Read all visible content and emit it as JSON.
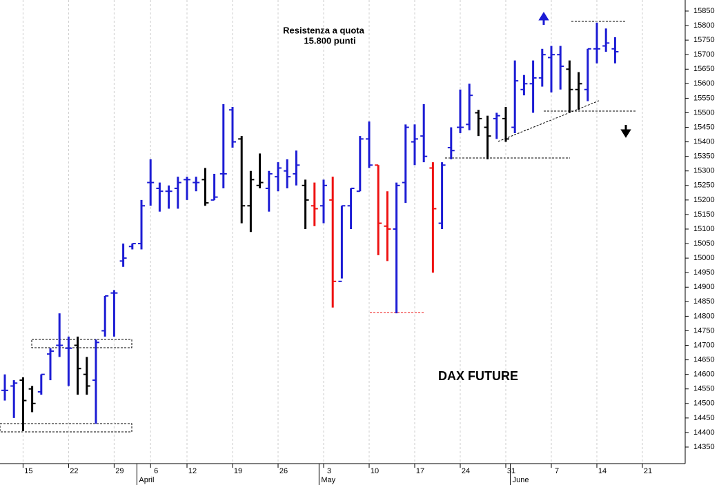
{
  "chart_data": {
    "type": "ohlc",
    "title": "DAX FUTURE",
    "annotations": [
      "Resistenza a quota",
      "15.800 punti"
    ],
    "categories": [
      null,
      null,
      "15",
      null,
      null,
      null,
      null,
      "22",
      null,
      null,
      null,
      null,
      "29",
      null,
      null,
      null,
      "6",
      null,
      null,
      null,
      "12",
      null,
      null,
      null,
      null,
      "19",
      null,
      null,
      null,
      null,
      "26",
      null,
      null,
      null,
      null,
      "3",
      null,
      null,
      null,
      null,
      "10",
      null,
      null,
      null,
      null,
      "17",
      null,
      null,
      null,
      null,
      "24",
      null,
      null,
      null,
      null,
      "31",
      null,
      null,
      null,
      null,
      "7",
      null,
      null,
      null,
      null,
      "14",
      null,
      null,
      null,
      null,
      "21",
      null,
      null,
      null
    ],
    "month_labels": [
      null,
      null,
      null,
      null,
      null,
      null,
      null,
      null,
      null,
      null,
      null,
      null,
      null,
      null,
      null,
      "April",
      null,
      null,
      null,
      null,
      null,
      null,
      null,
      null,
      null,
      null,
      null,
      null,
      null,
      null,
      null,
      null,
      null,
      null,
      null,
      "May",
      null,
      null,
      null,
      null,
      null,
      null,
      null,
      null,
      null,
      null,
      null,
      null,
      null,
      null,
      null,
      null,
      null,
      null,
      null,
      null,
      "June",
      null,
      null,
      null,
      null,
      null,
      null,
      null,
      null,
      null,
      null,
      null,
      null,
      null,
      null,
      null,
      null,
      null
    ],
    "series": [
      {
        "open": [
          14545,
          14560,
          14580,
          14550,
          14540,
          14670,
          14700,
          14690,
          14700,
          14600,
          14580,
          14750,
          14880,
          14990,
          15040,
          15050,
          15260,
          15240,
          15230,
          15240,
          15270,
          15260,
          15270,
          15200,
          15290,
          15510,
          15410,
          15180,
          15250,
          15240,
          15280,
          15300,
          15290,
          15250,
          15180,
          15180,
          15200,
          14920,
          15180,
          15230,
          15410,
          15320,
          15110,
          15100,
          15260,
          15400,
          15420,
          15310,
          15120,
          15380,
          15450,
          15460,
          15500,
          15450,
          15480,
          15480,
          15450,
          15580,
          15600,
          15620,
          15690,
          15700,
          15650,
          15580,
          15580,
          15720,
          15730,
          15720,
          null,
          null,
          null,
          null,
          null,
          null
        ],
        "high": [
          14600,
          14580,
          14590,
          14560,
          14600,
          14690,
          14810,
          14730,
          14730,
          14660,
          14720,
          14870,
          14890,
          15050,
          15050,
          15200,
          15340,
          15260,
          15250,
          15280,
          15280,
          15280,
          15310,
          15290,
          15530,
          15520,
          15420,
          15300,
          15360,
          15300,
          15330,
          15340,
          15370,
          15270,
          15260,
          15270,
          15280,
          15180,
          15240,
          15420,
          15470,
          15320,
          15230,
          15260,
          15460,
          15460,
          15530,
          15330,
          15330,
          15450,
          15580,
          15600,
          15510,
          15490,
          15500,
          15520,
          15680,
          15630,
          15680,
          15720,
          15730,
          15730,
          15680,
          15640,
          15720,
          15810,
          15790,
          15760,
          null,
          null,
          null,
          null,
          null,
          null
        ],
        "low": [
          14510,
          14450,
          14405,
          14470,
          14530,
          14580,
          14660,
          14560,
          14530,
          14530,
          14430,
          14730,
          14730,
          14970,
          15030,
          15030,
          15180,
          15160,
          15170,
          15170,
          15200,
          15230,
          15180,
          15200,
          15240,
          15380,
          15120,
          15090,
          15240,
          15160,
          15230,
          15240,
          15250,
          15100,
          15110,
          15120,
          14830,
          14930,
          15100,
          15230,
          15310,
          15010,
          14990,
          14810,
          15190,
          15320,
          15330,
          14950,
          15100,
          15340,
          15430,
          15440,
          15420,
          15340,
          15410,
          15400,
          15430,
          15560,
          15500,
          15590,
          15570,
          15580,
          15500,
          15510,
          15540,
          15670,
          15710,
          15670,
          null,
          null,
          null,
          null,
          null,
          null
        ],
        "close": [
          14545,
          14570,
          14510,
          14500,
          14600,
          14680,
          14700,
          14690,
          14620,
          14560,
          14710,
          14870,
          14880,
          15000,
          15050,
          15180,
          15260,
          15230,
          15230,
          15260,
          15270,
          15260,
          15190,
          15210,
          15290,
          15400,
          15180,
          15270,
          15260,
          15290,
          15310,
          15280,
          15320,
          15200,
          15170,
          15250,
          14920,
          15180,
          15240,
          15410,
          15320,
          15120,
          15100,
          15250,
          15450,
          15410,
          15350,
          15170,
          15320,
          15370,
          15450,
          15560,
          15480,
          15420,
          15490,
          15410,
          15610,
          15600,
          15620,
          15700,
          15700,
          15660,
          15580,
          15600,
          15720,
          15720,
          15740,
          15710,
          null,
          null,
          null,
          null,
          null,
          null
        ],
        "colors": [
          "#1c1cd4",
          "#1c1cd4",
          "#000000",
          "#000000",
          "#1c1cd4",
          "#1c1cd4",
          "#1c1cd4",
          "#1c1cd4",
          "#000000",
          "#000000",
          "#1c1cd4",
          "#1c1cd4",
          "#1c1cd4",
          "#1c1cd4",
          "#1c1cd4",
          "#1c1cd4",
          "#1c1cd4",
          "#1c1cd4",
          "#1c1cd4",
          "#1c1cd4",
          "#1c1cd4",
          "#1c1cd4",
          "#000000",
          "#1c1cd4",
          "#1c1cd4",
          "#1c1cd4",
          "#000000",
          "#000000",
          "#000000",
          "#1c1cd4",
          "#1c1cd4",
          "#1c1cd4",
          "#1c1cd4",
          "#000000",
          "#ee1111",
          "#1c1cd4",
          "#ee1111",
          "#1c1cd4",
          "#1c1cd4",
          "#1c1cd4",
          "#1c1cd4",
          "#ee1111",
          "#ee1111",
          "#1c1cd4",
          "#1c1cd4",
          "#1c1cd4",
          "#1c1cd4",
          "#ee1111",
          "#1c1cd4",
          "#1c1cd4",
          "#1c1cd4",
          "#1c1cd4",
          "#000000",
          "#000000",
          "#1c1cd4",
          "#000000",
          "#1c1cd4",
          "#1c1cd4",
          "#1c1cd4",
          "#1c1cd4",
          "#1c1cd4",
          "#1c1cd4",
          "#000000",
          "#000000",
          "#1c1cd4",
          "#1c1cd4",
          "#1c1cd4",
          "#1c1cd4",
          null,
          null,
          null,
          null,
          null,
          null
        ]
      }
    ],
    "ylim": [
      14293,
      15888
    ],
    "yticks": [
      14350,
      14400,
      14450,
      14500,
      14550,
      14600,
      14650,
      14700,
      14750,
      14800,
      14850,
      14900,
      14950,
      15000,
      15050,
      15100,
      15150,
      15200,
      15250,
      15300,
      15350,
      15400,
      15450,
      15500,
      15550,
      15600,
      15650,
      15700,
      15750,
      15800,
      15850
    ],
    "grid": true
  }
}
